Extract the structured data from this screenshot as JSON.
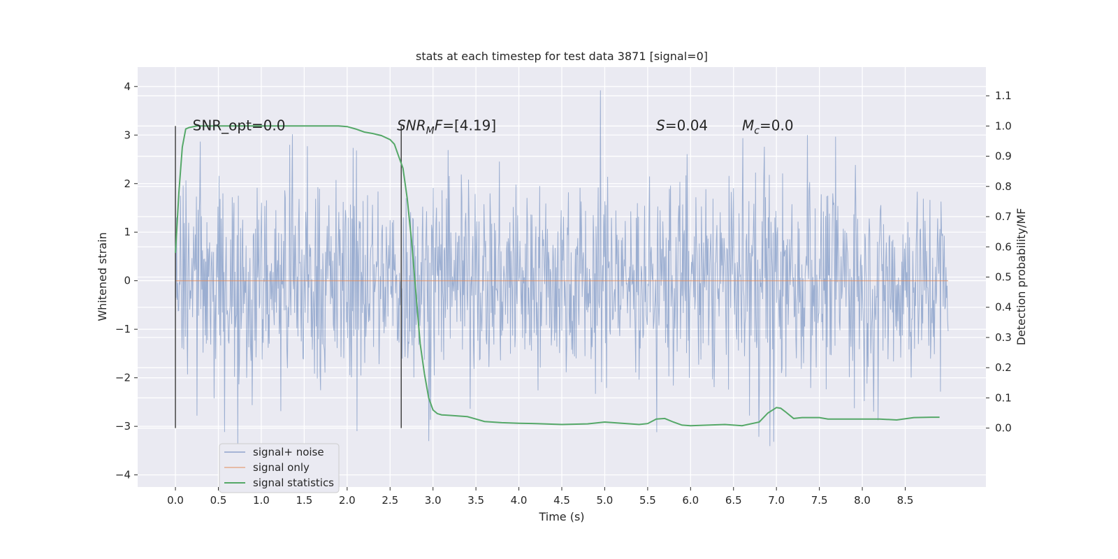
{
  "chart_data": {
    "type": "line",
    "title": "stats at each timestep for test data 3871 [signal=0]",
    "xlabel": "Time (s)",
    "ylabel": "Whitened strain",
    "y2label": "Detection probability/MF",
    "xlim": [
      -0.44,
      9.44
    ],
    "ylim": [
      -4.25,
      4.4
    ],
    "y2lim": [
      -0.195,
      1.195
    ],
    "xticks": [
      0.0,
      0.5,
      1.0,
      1.5,
      2.0,
      2.5,
      3.0,
      3.5,
      4.0,
      4.5,
      5.0,
      5.5,
      6.0,
      6.5,
      7.0,
      7.5,
      8.0,
      8.5
    ],
    "xtick_labels": [
      "0.0",
      "0.5",
      "1.0",
      "1.5",
      "2.0",
      "2.5",
      "3.0",
      "3.5",
      "4.0",
      "4.5",
      "5.0",
      "5.5",
      "6.0",
      "6.5",
      "7.0",
      "7.5",
      "8.0",
      "8.5"
    ],
    "yticks": [
      -4,
      -3,
      -2,
      -1,
      0,
      1,
      2,
      3,
      4
    ],
    "ytick_labels": [
      "−4",
      "−3",
      "−2",
      "−1",
      "0",
      "1",
      "2",
      "3",
      "4"
    ],
    "y2ticks": [
      0.0,
      0.1,
      0.2,
      0.3,
      0.4,
      0.5,
      0.6,
      0.7,
      0.8,
      0.9,
      1.0,
      1.1
    ],
    "y2tick_labels": [
      "0.0",
      "0.1",
      "0.2",
      "0.3",
      "0.4",
      "0.5",
      "0.6",
      "0.7",
      "0.8",
      "0.9",
      "1.0",
      "1.1"
    ],
    "grid": true,
    "legend_position": "lower-left",
    "legend": [
      {
        "label": "signal+ noise",
        "color": "#4c72b0"
      },
      {
        "label": "signal only",
        "color": "#dd8452"
      },
      {
        "label": "signal statistics",
        "color": "#55a868"
      }
    ],
    "series": [
      {
        "name": "signal+ noise",
        "color": "#4c72b0",
        "axis": "left",
        "x_range": [
          0.0,
          9.0
        ],
        "core_band": [
          -1.8,
          1.9
        ],
        "peak_range": [
          -3.9,
          4.0
        ],
        "note": "dense whitened noise trace, ~9 s"
      },
      {
        "name": "signal only",
        "color": "#dd8452",
        "axis": "left",
        "x": [
          0.0,
          9.0
        ],
        "y": [
          0.0,
          0.0
        ]
      },
      {
        "name": "signal statistics",
        "color": "#55a868",
        "axis": "right",
        "x": [
          0.0,
          0.04,
          0.08,
          0.12,
          0.16,
          0.25,
          0.4,
          0.8,
          1.2,
          1.6,
          1.9,
          2.0,
          2.1,
          2.2,
          2.3,
          2.4,
          2.5,
          2.55,
          2.6,
          2.65,
          2.7,
          2.75,
          2.8,
          2.85,
          2.9,
          2.95,
          3.0,
          3.05,
          3.1,
          3.2,
          3.3,
          3.4,
          3.5,
          3.6,
          3.8,
          4.0,
          4.2,
          4.5,
          4.8,
          5.0,
          5.2,
          5.4,
          5.5,
          5.6,
          5.7,
          5.8,
          5.9,
          6.0,
          6.2,
          6.4,
          6.6,
          6.8,
          6.9,
          7.0,
          7.05,
          7.1,
          7.2,
          7.3,
          7.5,
          7.6,
          7.8,
          8.0,
          8.2,
          8.4,
          8.6,
          8.8,
          8.9
        ],
        "y": [
          0.58,
          0.78,
          0.93,
          0.99,
          0.995,
          1.0,
          1.0,
          1.0,
          1.0,
          1.0,
          1.0,
          0.998,
          0.99,
          0.98,
          0.975,
          0.968,
          0.955,
          0.94,
          0.9,
          0.86,
          0.76,
          0.62,
          0.45,
          0.28,
          0.18,
          0.1,
          0.06,
          0.048,
          0.044,
          0.042,
          0.04,
          0.038,
          0.03,
          0.022,
          0.018,
          0.016,
          0.015,
          0.012,
          0.014,
          0.02,
          0.016,
          0.012,
          0.015,
          0.03,
          0.032,
          0.02,
          0.01,
          0.008,
          0.01,
          0.012,
          0.008,
          0.02,
          0.05,
          0.068,
          0.066,
          0.055,
          0.032,
          0.035,
          0.035,
          0.03,
          0.03,
          0.03,
          0.03,
          0.027,
          0.035,
          0.036,
          0.036
        ]
      }
    ],
    "vlines": [
      {
        "x": 0.0,
        "color": "#444444"
      },
      {
        "x": 2.63,
        "color": "#444444"
      }
    ],
    "annotations": [
      {
        "id": "snr-opt",
        "x": 0.2,
        "y": 3.1,
        "parts": [
          {
            "t": "SNR_opt=0.0"
          }
        ]
      },
      {
        "id": "snr-mf",
        "x": 2.58,
        "y": 3.1,
        "parts": [
          {
            "t": "SNR",
            "i": true
          },
          {
            "t": "M",
            "i": true,
            "sub": true
          },
          {
            "t": "F",
            "i": true
          },
          {
            "t": "=[4.19]"
          }
        ]
      },
      {
        "id": "s-value",
        "x": 5.6,
        "y": 3.1,
        "parts": [
          {
            "t": "S",
            "i": true
          },
          {
            "t": "=0.04"
          }
        ]
      },
      {
        "id": "mc-value",
        "x": 6.6,
        "y": 3.1,
        "parts": [
          {
            "t": "M",
            "i": true
          },
          {
            "t": "c",
            "i": true,
            "sub": true
          },
          {
            "t": "=0.0"
          }
        ]
      }
    ]
  }
}
